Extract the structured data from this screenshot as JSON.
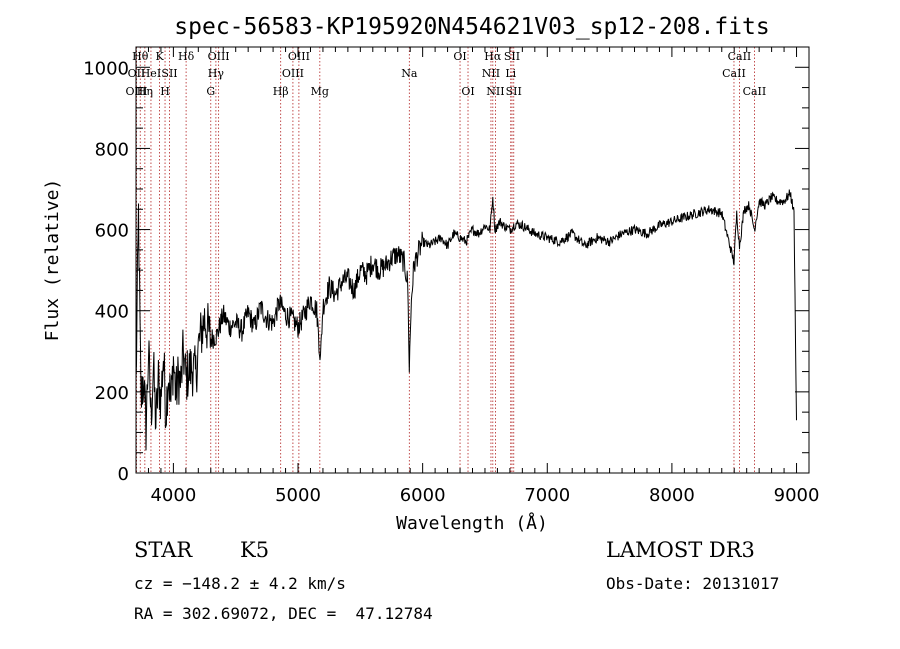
{
  "chart_data": {
    "type": "line",
    "title": "spec-56583-KP195920N454621V03_sp12-208.fits",
    "xlabel": "Wavelength (Å)",
    "ylabel": "Flux (relative)",
    "xlim": [
      3700,
      9100
    ],
    "ylim": [
      0,
      1050
    ],
    "xticks": [
      4000,
      5000,
      6000,
      7000,
      8000,
      9000
    ],
    "yticks": [
      0,
      200,
      400,
      600,
      800,
      1000
    ],
    "grid": false,
    "series": [
      {
        "x": [
          3700,
          3720,
          3740,
          3760,
          3780,
          3800,
          3820,
          3840,
          3860,
          3880,
          3900,
          3920,
          3940,
          3960,
          3980,
          4000,
          4020,
          4040,
          4060,
          4080,
          4100,
          4120,
          4150,
          4180,
          4200,
          4250,
          4300,
          4350,
          4400,
          4450,
          4500,
          4550,
          4600,
          4650,
          4700,
          4750,
          4800,
          4850,
          4900,
          4950,
          5000,
          5050,
          5100,
          5150,
          5180,
          5200,
          5250,
          5300,
          5350,
          5400,
          5450,
          5500,
          5550,
          5600,
          5650,
          5700,
          5750,
          5800,
          5850,
          5880,
          5893,
          5910,
          5930,
          5960,
          6000,
          6050,
          6100,
          6150,
          6200,
          6250,
          6300,
          6350,
          6400,
          6450,
          6500,
          6540,
          6563,
          6580,
          6620,
          6650,
          6700,
          6750,
          6800,
          6850,
          6900,
          7000,
          7100,
          7200,
          7300,
          7400,
          7500,
          7600,
          7700,
          7800,
          7900,
          8000,
          8100,
          8200,
          8300,
          8400,
          8498,
          8520,
          8542,
          8580,
          8620,
          8662,
          8700,
          8750,
          8800,
          8850,
          8900,
          8950,
          8980,
          9000
        ],
        "values": [
          210,
          640,
          170,
          240,
          110,
          300,
          140,
          260,
          120,
          230,
          180,
          290,
          150,
          250,
          170,
          280,
          190,
          240,
          220,
          300,
          230,
          250,
          260,
          240,
          310,
          380,
          330,
          340,
          390,
          360,
          370,
          350,
          395,
          360,
          410,
          380,
          370,
          420,
          390,
          380,
          360,
          390,
          430,
          400,
          280,
          410,
          460,
          440,
          470,
          480,
          450,
          500,
          490,
          520,
          500,
          510,
          530,
          540,
          520,
          470,
          260,
          430,
          510,
          540,
          570,
          560,
          570,
          580,
          560,
          590,
          580,
          570,
          600,
          590,
          610,
          600,
          680,
          600,
          620,
          610,
          600,
          615,
          610,
          600,
          590,
          580,
          570,
          590,
          560,
          580,
          570,
          590,
          600,
          590,
          610,
          620,
          630,
          640,
          650,
          640,
          520,
          640,
          560,
          650,
          660,
          600,
          670,
          660,
          680,
          670,
          670,
          690,
          640,
          130
        ]
      }
    ],
    "line_labels": [
      {
        "wl": 3704,
        "text": "OII",
        "row": 1
      },
      {
        "wl": 3704,
        "text": "OIII",
        "row": 2
      },
      {
        "wl": 3734,
        "text": "Hθ",
        "row": 0
      },
      {
        "wl": 3771,
        "text": "Hη",
        "row": 2
      },
      {
        "wl": 3820,
        "text": "HeI",
        "row": 1
      },
      {
        "wl": 3889,
        "text": "K",
        "row": 0
      },
      {
        "wl": 3933,
        "text": "H",
        "row": 2
      },
      {
        "wl": 3969,
        "text": "SII",
        "row": 1
      },
      {
        "wl": 4102,
        "text": "Hδ",
        "row": 0
      },
      {
        "wl": 4300,
        "text": "G",
        "row": 2
      },
      {
        "wl": 4341,
        "text": "Hγ",
        "row": 1
      },
      {
        "wl": 4363,
        "text": "OIII",
        "row": 0
      },
      {
        "wl": 4861,
        "text": "Hβ",
        "row": 2
      },
      {
        "wl": 4959,
        "text": "OIII",
        "row": 1
      },
      {
        "wl": 5007,
        "text": "OIII",
        "row": 0
      },
      {
        "wl": 5175,
        "text": "Mg",
        "row": 2
      },
      {
        "wl": 5893,
        "text": "Na",
        "row": 1
      },
      {
        "wl": 6300,
        "text": "OI",
        "row": 0
      },
      {
        "wl": 6364,
        "text": "OI",
        "row": 2
      },
      {
        "wl": 6548,
        "text": "NII",
        "row": 1
      },
      {
        "wl": 6563,
        "text": "Hα",
        "row": 0
      },
      {
        "wl": 6584,
        "text": "NII",
        "row": 2
      },
      {
        "wl": 6707,
        "text": "Li",
        "row": 1
      },
      {
        "wl": 6717,
        "text": "SII",
        "row": 0
      },
      {
        "wl": 6731,
        "text": "SII",
        "row": 2
      },
      {
        "wl": 8498,
        "text": "CaII",
        "row": 1
      },
      {
        "wl": 8542,
        "text": "CaII",
        "row": 0
      },
      {
        "wl": 8662,
        "text": "CaII",
        "row": 2
      }
    ],
    "line_color": "#000000",
    "marker_color": "#b22222"
  },
  "info": {
    "object_class": "STAR",
    "subclass": "K5",
    "survey": "LAMOST DR3",
    "redshift": "cz = −148.2 ± 4.2 km/s",
    "obs_date": "Obs-Date: 20131017",
    "coords": "RA = 302.69072, DEC =  47.12784"
  }
}
